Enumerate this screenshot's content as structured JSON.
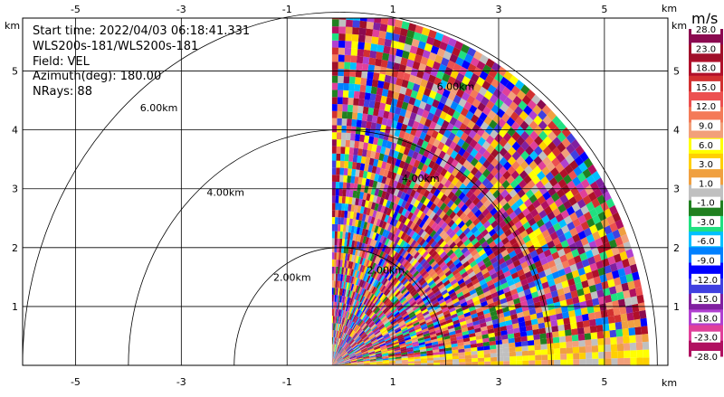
{
  "info": {
    "start_time": "Start time: 2022/04/03 06:18:41.331",
    "instrument": "WLS200s-181/WLS200s-181",
    "field": "Field: VEL",
    "azimuth": "Azimuth(deg): 180.00",
    "nrays": "NRays: 88"
  },
  "axis_unit": "km",
  "colorbar": {
    "title": "m/s",
    "labels": [
      "28.0",
      "23.0",
      "18.0",
      "15.0",
      "12.0",
      "9.0",
      "6.0",
      "3.0",
      "1.0",
      "-1.0",
      "-3.0",
      "-6.0",
      "-9.0",
      "-12.0",
      "-15.0",
      "-18.0",
      "-23.0",
      "-28.0"
    ],
    "colors": [
      "#8b0a50",
      "#a0102a",
      "#b0102a",
      "#d23030",
      "#ec5050",
      "#f47a58",
      "#f2a07a",
      "#ffff00",
      "#ffd000",
      "#f0a040",
      "#c0c0c0",
      "#208020",
      "#20e080",
      "#00c0ff",
      "#0080ff",
      "#0000ff",
      "#4040e0",
      "#8020a0",
      "#b040d0",
      "#e0409a",
      "#b01060"
    ]
  },
  "chart_data": {
    "type": "heatmap",
    "xlim": [
      -6.0,
      6.2
    ],
    "ylim": [
      0.0,
      5.9
    ],
    "x_ticks": [
      -5,
      -3,
      -1,
      1,
      3,
      5
    ],
    "y_ticks": [
      1,
      2,
      3,
      4,
      5
    ],
    "range_rings": [
      {
        "radius": 2.0,
        "label": "2.00km"
      },
      {
        "radius": 4.0,
        "label": "4.00km"
      },
      {
        "radius": 6.0,
        "label": "6.00km"
      }
    ],
    "data_sector_x_min": -0.15,
    "max_range_km": 6.0,
    "grid": true
  }
}
